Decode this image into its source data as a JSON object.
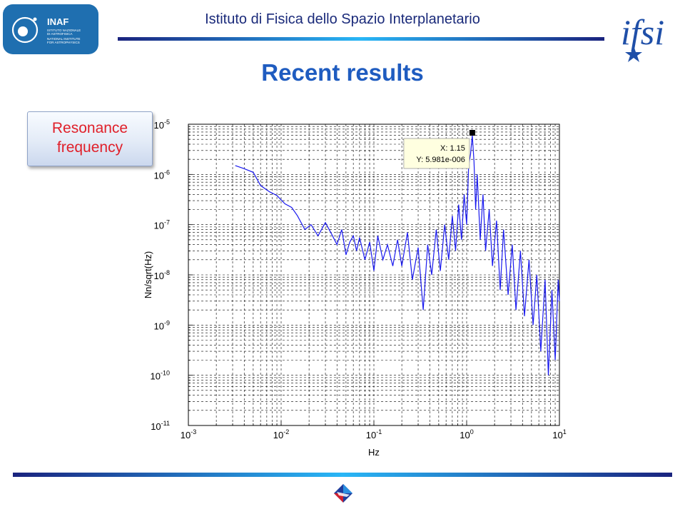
{
  "header": {
    "title": "Istituto di Fisica dello Spazio Interplanetario",
    "inaf_logo": {
      "name": "INAF",
      "line1": "ISTITUTO NAZIONALE",
      "line2": "DI ASTROFISICA",
      "line3": "NATIONAL INSTITUTE",
      "line4": "FOR ASTROPHYSICS",
      "color": "#1f6fb0"
    },
    "ifsi_logo": {
      "text": "ifsi",
      "color": "#1f4fa8"
    }
  },
  "page_title": "Recent results",
  "callout": {
    "line1": "Resonance",
    "line2": "frequency",
    "color": "#e0202a"
  },
  "footer": {
    "icon": "ifsi-small-logo-icon"
  },
  "colors": {
    "accent": "#1f5cc0",
    "rule_dark": "#1a237e",
    "rule_light": "#29b6f6",
    "trace": "#1a1aee"
  },
  "chart_data": {
    "type": "line",
    "xlabel": "Hz",
    "ylabel": "Nn/sqrt(Hz)",
    "xscale": "log",
    "yscale": "log",
    "xlim": [
      0.001,
      10
    ],
    "ylim": [
      1e-11,
      1e-05
    ],
    "grid": true,
    "xticks": [
      {
        "value": 0.001,
        "base": "10",
        "exp": "-3"
      },
      {
        "value": 0.01,
        "base": "10",
        "exp": "-2"
      },
      {
        "value": 0.1,
        "base": "10",
        "exp": "-1"
      },
      {
        "value": 1,
        "base": "10",
        "exp": "0"
      },
      {
        "value": 10,
        "base": "10",
        "exp": "1"
      }
    ],
    "yticks": [
      {
        "value": 1e-05,
        "base": "10",
        "exp": "-5"
      },
      {
        "value": 1e-06,
        "base": "10",
        "exp": "-6"
      },
      {
        "value": 1e-07,
        "base": "10",
        "exp": "-7"
      },
      {
        "value": 1e-08,
        "base": "10",
        "exp": "-8"
      },
      {
        "value": 1e-09,
        "base": "10",
        "exp": "-9"
      },
      {
        "value": 1e-10,
        "base": "10",
        "exp": "-10"
      },
      {
        "value": 1e-11,
        "base": "10",
        "exp": "-11"
      }
    ],
    "datatip": {
      "x": 1.15,
      "y": 5.981e-06,
      "x_label": "X: 1.15",
      "y_label": "Y: 5.981e-006"
    },
    "series": [
      {
        "x": [
          0.0032,
          0.004,
          0.005,
          0.006,
          0.0075,
          0.009,
          0.011,
          0.013,
          0.015,
          0.018,
          0.021,
          0.025,
          0.03,
          0.035,
          0.04,
          0.045,
          0.05,
          0.055,
          0.06,
          0.065,
          0.07,
          0.08,
          0.09,
          0.1,
          0.11,
          0.125,
          0.14,
          0.16,
          0.18,
          0.2,
          0.23,
          0.26,
          0.3,
          0.34,
          0.38,
          0.42,
          0.47,
          0.52,
          0.58,
          0.64,
          0.7,
          0.76,
          0.82,
          0.88,
          0.94,
          1.0,
          1.05,
          1.1,
          1.15,
          1.2,
          1.25,
          1.3,
          1.4,
          1.5,
          1.6,
          1.75,
          1.9,
          2.1,
          2.3,
          2.5,
          2.8,
          3.1,
          3.4,
          3.8,
          4.2,
          4.7,
          5.2,
          5.7,
          6.3,
          7.0,
          7.6,
          8.3,
          9.0,
          9.7,
          10.0
        ],
        "y": [
          1.5e-06,
          1.3e-06,
          1.1e-06,
          6e-07,
          4.5e-07,
          3.8e-07,
          2.6e-07,
          2.2e-07,
          1.5e-07,
          8e-08,
          1e-07,
          6e-08,
          1.1e-07,
          6.5e-08,
          4e-08,
          8e-08,
          2.5e-08,
          4.5e-08,
          6e-08,
          3e-08,
          5.5e-08,
          2e-08,
          4.5e-08,
          1.2e-08,
          6e-08,
          2e-08,
          4e-08,
          1.5e-08,
          5e-08,
          1.5e-08,
          7e-08,
          8e-09,
          3.5e-08,
          2e-09,
          4e-08,
          1e-08,
          8e-08,
          1.2e-08,
          1e-07,
          2e-08,
          1.5e-07,
          3e-08,
          2.5e-07,
          5e-08,
          4e-07,
          1e-07,
          1.5e-06,
          2.5e-06,
          5.981e-06,
          1.8e-06,
          2e-07,
          1e-06,
          5e-08,
          4e-07,
          3e-08,
          2e-07,
          1.5e-08,
          1.2e-07,
          5e-09,
          8e-08,
          4e-09,
          4e-08,
          2e-09,
          3e-08,
          1.5e-09,
          2e-08,
          1e-09,
          1e-08,
          3e-10,
          8e-09,
          1e-10,
          5e-09,
          2e-10,
          8e-09,
          3e-09
        ]
      }
    ]
  }
}
